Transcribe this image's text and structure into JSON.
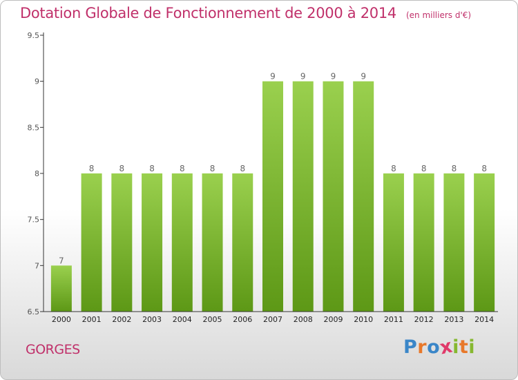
{
  "header": {
    "title": "Dotation Globale de Fonctionnement de 2000 à 2014",
    "subtitle": "(en milliers d'€)"
  },
  "footer": {
    "city": "GORGES",
    "logo": "Proxiti"
  },
  "colors": {
    "title": "#c0306a",
    "bar_top": "#9ad04e",
    "bar_bottom": "#5d9816",
    "axis": "#333333",
    "logo_letters": [
      "#3a86c8",
      "#e8782a",
      "#3a86c8",
      "#e03a6a",
      "#86b830",
      "#e8782a",
      "#86b830"
    ]
  },
  "chart_data": {
    "type": "bar",
    "title": "Dotation Globale de Fonctionnement de 2000 à 2014",
    "subtitle": "(en milliers d'€)",
    "xlabel": "",
    "ylabel": "",
    "categories": [
      "2000",
      "2001",
      "2002",
      "2003",
      "2004",
      "2005",
      "2006",
      "2007",
      "2008",
      "2009",
      "2010",
      "2011",
      "2012",
      "2013",
      "2014"
    ],
    "values": [
      7,
      8,
      8,
      8,
      8,
      8,
      8,
      9,
      9,
      9,
      9,
      8,
      8,
      8,
      8
    ],
    "ylim": [
      6.5,
      9.5
    ],
    "yticks": [
      "6.5",
      "7",
      "7.5",
      "8",
      "8.5",
      "9",
      "9.5"
    ],
    "grid": false,
    "legend": "none"
  }
}
